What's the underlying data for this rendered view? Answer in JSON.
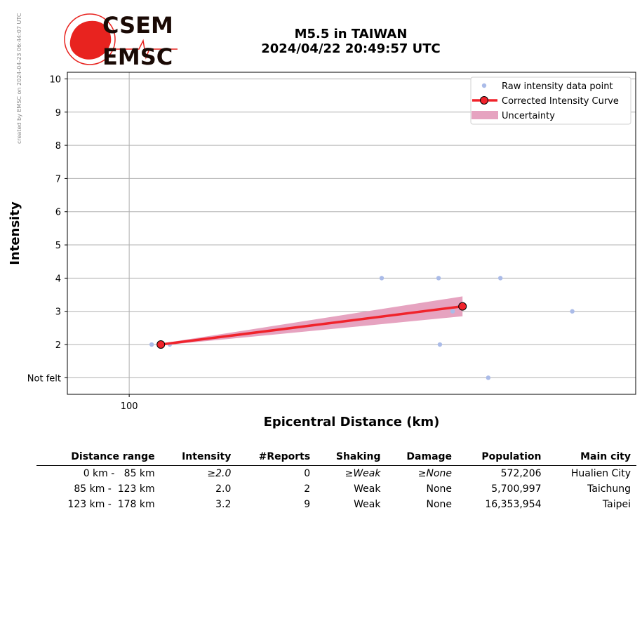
{
  "side_note": "created by EMSC on 2024-04-23 06:44:07 UTC",
  "logo": {
    "line1": "CSEM",
    "line2": "EMSC",
    "color": "#e8231f"
  },
  "title": {
    "line1": "M5.5 in TAIWAN",
    "line2": "2024/04/22 20:49:57 UTC"
  },
  "chart_data": {
    "type": "scatter",
    "xlabel": "Epicentral Distance (km)",
    "ylabel": "Intensity",
    "x_scale": "log",
    "xlim": [
      83,
      460
    ],
    "ylim": [
      0.5,
      10.2
    ],
    "x_ticks": [
      {
        "value": 100,
        "label": "100"
      }
    ],
    "y_ticks": [
      {
        "value": 1,
        "label": "Not felt"
      },
      {
        "value": 2,
        "label": "2"
      },
      {
        "value": 3,
        "label": "3"
      },
      {
        "value": 4,
        "label": "4"
      },
      {
        "value": 5,
        "label": "5"
      },
      {
        "value": 6,
        "label": "6"
      },
      {
        "value": 7,
        "label": "7"
      },
      {
        "value": 8,
        "label": "8"
      },
      {
        "value": 9,
        "label": "9"
      },
      {
        "value": 10,
        "label": "10"
      }
    ],
    "grid": true,
    "legend_position": "top-right",
    "legend": [
      "Raw intensity data point",
      "Corrected Intensity Curve",
      "Uncertainty"
    ],
    "series": [
      {
        "name": "Raw intensity data point",
        "color": "#aabbe8",
        "points": [
          [
            107,
            2
          ],
          [
            113,
            2
          ],
          [
            214,
            4
          ],
          [
            254,
            4
          ],
          [
            255,
            2
          ],
          [
            265,
            3
          ],
          [
            295,
            1
          ],
          [
            306,
            4
          ],
          [
            380,
            3
          ]
        ]
      },
      {
        "name": "Corrected Intensity Curve",
        "color": "#f0232b",
        "points": [
          [
            110,
            2.0
          ],
          [
            273,
            3.15
          ]
        ]
      },
      {
        "name": "Uncertainty",
        "color": "#e6a3c0",
        "band": [
          [
            110,
            1.97,
            2.03
          ],
          [
            273,
            2.85,
            3.45
          ]
        ]
      }
    ]
  },
  "table": {
    "headers": [
      "Distance range",
      "Intensity",
      "#Reports",
      "Shaking",
      "Damage",
      "Population",
      "Main city"
    ],
    "rows": [
      [
        "0 km -   85 km",
        "≥2.0",
        "0",
        "≥Weak",
        "≥None",
        "572,206",
        "Hualien City"
      ],
      [
        "85 km -  123 km",
        "2.0",
        "2",
        "Weak",
        "None",
        "5,700,997",
        "Taichung"
      ],
      [
        "123 km -  178 km",
        "3.2",
        "9",
        "Weak",
        "None",
        "16,353,954",
        "Taipei"
      ]
    ]
  }
}
